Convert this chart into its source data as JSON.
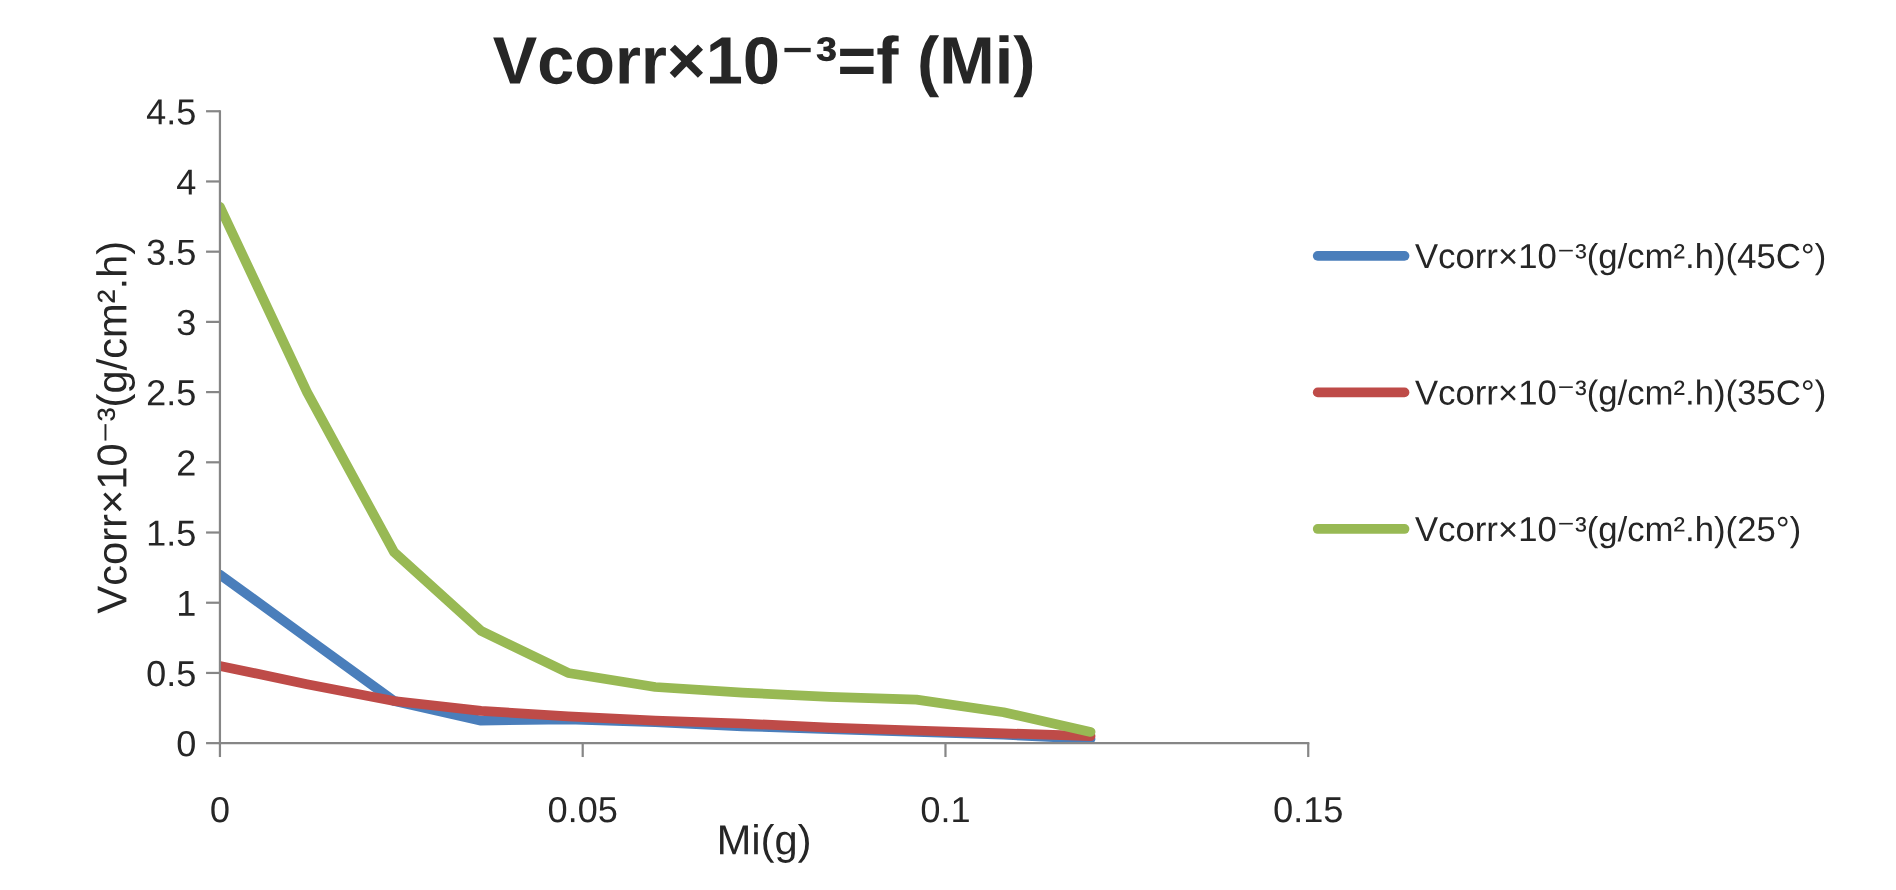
{
  "chart_data": {
    "type": "line",
    "title": "Vcorr×10⁻³=f (Mi)",
    "xlabel": "Mi(g)",
    "ylabel": "Vcorr×10⁻³(g/cm².h)",
    "x": [
      0,
      0.012,
      0.024,
      0.036,
      0.048,
      0.06,
      0.072,
      0.084,
      0.096,
      0.108,
      0.12
    ],
    "series": [
      {
        "name": "Vcorr×10⁻³(g/cm².h)(45C°)",
        "color": "#4a7ebb",
        "values": [
          1.2,
          0.75,
          0.3,
          0.16,
          0.17,
          0.15,
          0.12,
          0.1,
          0.08,
          0.06,
          0.03
        ]
      },
      {
        "name": "Vcorr×10⁻³(g/cm².h)(35C°)",
        "color": "#be4b48",
        "values": [
          0.55,
          0.42,
          0.3,
          0.23,
          0.19,
          0.16,
          0.14,
          0.11,
          0.09,
          0.07,
          0.05
        ]
      },
      {
        "name": "Vcorr×10⁻³(g/cm².h)(25°)",
        "color": "#98b954",
        "values": [
          3.82,
          2.5,
          1.36,
          0.8,
          0.5,
          0.4,
          0.36,
          0.33,
          0.31,
          0.22,
          0.08
        ]
      }
    ],
    "xlim": [
      0,
      0.15
    ],
    "xticks": [
      0,
      0.05,
      0.1,
      0.15
    ],
    "ylim": [
      0,
      4.5
    ],
    "yticks": [
      0,
      0.5,
      1,
      1.5,
      2,
      2.5,
      3,
      3.5,
      4,
      4.5
    ],
    "grid": false,
    "legend": "right",
    "marker": "none",
    "line_style": "solid"
  }
}
